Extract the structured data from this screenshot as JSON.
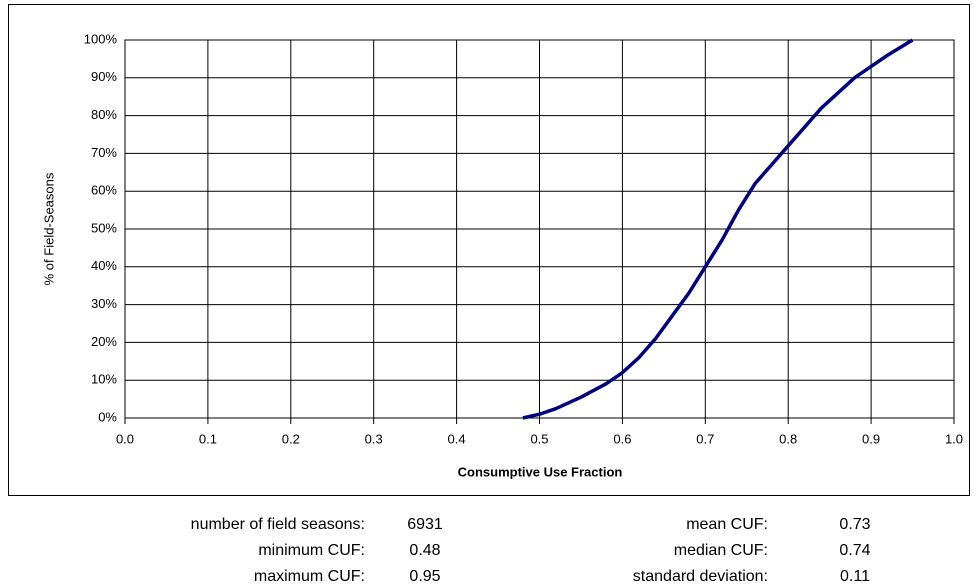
{
  "chart_data": {
    "type": "line",
    "x_label": "Consumptive Use Fraction",
    "y_label": "% of Field-Seasons",
    "x": [
      0.48,
      0.5,
      0.52,
      0.55,
      0.58,
      0.6,
      0.62,
      0.64,
      0.66,
      0.68,
      0.7,
      0.72,
      0.74,
      0.76,
      0.78,
      0.8,
      0.82,
      0.84,
      0.86,
      0.88,
      0.9,
      0.92,
      0.95
    ],
    "series": [
      {
        "color": "#000080",
        "values": [
          0,
          1,
          2.5,
          5.5,
          9,
          12,
          16,
          21,
          27,
          33,
          40,
          47,
          55,
          62,
          67,
          72,
          77,
          82,
          86,
          90,
          93,
          96,
          100
        ]
      }
    ],
    "xlim": [
      0,
      1
    ],
    "xticks": [
      {
        "value": 0,
        "label": "0.0"
      },
      0.1,
      0.2,
      0.3,
      0.4,
      0.5,
      0.6,
      0.7,
      0.8,
      0.9,
      {
        "value": 1,
        "label": "1.0"
      }
    ],
    "ylim": [
      0,
      100
    ],
    "yticks": [
      {
        "value": 0,
        "label": "0%"
      },
      {
        "value": 10,
        "label": "10%"
      },
      {
        "value": 20,
        "label": "20%"
      },
      {
        "value": 30,
        "label": "30%"
      },
      {
        "value": 40,
        "label": "40%"
      },
      {
        "value": 50,
        "label": "50%"
      },
      {
        "value": 60,
        "label": "60%"
      },
      {
        "value": 70,
        "label": "70%"
      },
      {
        "value": 80,
        "label": "80%"
      },
      {
        "value": 90,
        "label": "90%"
      },
      {
        "value": 100,
        "label": "100%"
      }
    ],
    "grid": true
  },
  "stats": {
    "left": [
      {
        "label": "number of field seasons:",
        "value": 6931
      },
      {
        "label": "minimum CUF:",
        "value": 0.48
      },
      {
        "label": "maximum CUF:",
        "value": 0.95
      }
    ],
    "right": [
      {
        "label": "mean CUF:",
        "value": 0.73
      },
      {
        "label": "median CUF:",
        "value": 0.74
      },
      {
        "label": "standard deviation:",
        "value": 0.11
      }
    ]
  }
}
